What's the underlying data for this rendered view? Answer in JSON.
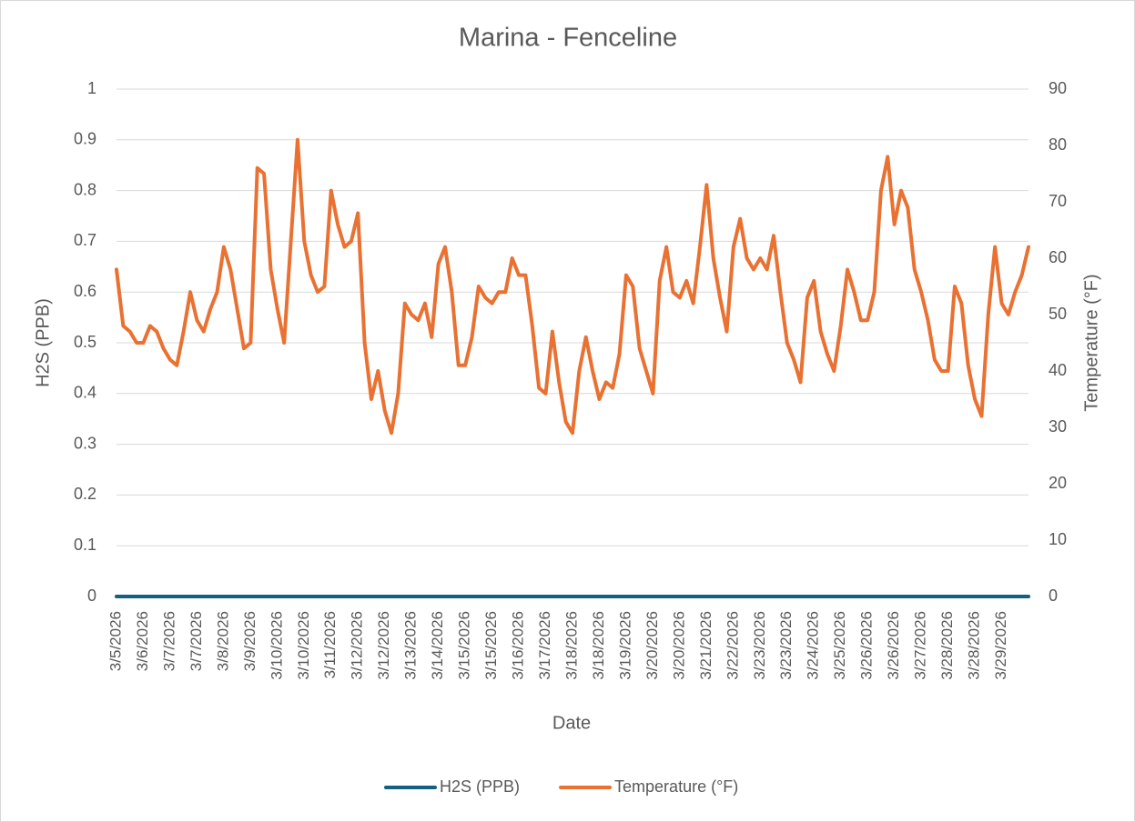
{
  "chart_data": {
    "type": "line",
    "title": "Marina - Fenceline",
    "x_label": "Date",
    "y_label": "H2S (PPB)",
    "y2_label": "Temperature (°F)",
    "categories": [
      "3/5/2026",
      null,
      null,
      null,
      "3/6/2026",
      null,
      null,
      null,
      "3/7/2026",
      null,
      null,
      null,
      "3/7/2026",
      null,
      null,
      null,
      "3/8/2026",
      null,
      null,
      null,
      "3/9/2026",
      null,
      null,
      null,
      "3/10/2026",
      null,
      null,
      null,
      "3/10/2026",
      null,
      null,
      null,
      "3/11/2026",
      null,
      null,
      null,
      "3/12/2026",
      null,
      null,
      null,
      "3/12/2026",
      null,
      null,
      null,
      "3/13/2026",
      null,
      null,
      null,
      "3/14/2026",
      null,
      null,
      null,
      "3/15/2026",
      null,
      null,
      null,
      "3/15/2026",
      null,
      null,
      null,
      "3/16/2026",
      null,
      null,
      null,
      "3/17/2026",
      null,
      null,
      null,
      "3/18/2026",
      null,
      null,
      null,
      "3/18/2026",
      null,
      null,
      null,
      "3/19/2026",
      null,
      null,
      null,
      "3/20/2026",
      null,
      null,
      null,
      "3/20/2026",
      null,
      null,
      null,
      "3/21/2026",
      null,
      null,
      null,
      "3/22/2026",
      null,
      null,
      null,
      "3/23/2026",
      null,
      null,
      null,
      "3/23/2026",
      null,
      null,
      null,
      "3/24/2026",
      null,
      null,
      null,
      "3/25/2026",
      null,
      null,
      null,
      "3/26/2026",
      null,
      null,
      null,
      "3/26/2026",
      null,
      null,
      null,
      "3/27/2026",
      null,
      null,
      null,
      "3/28/2026",
      null,
      null,
      null,
      "3/28/2026",
      null,
      null,
      null,
      "3/29/2026",
      null,
      null,
      null,
      null
    ],
    "series": [
      {
        "name": "H2S (PPB)",
        "color": "#156082",
        "axis": "y",
        "values": [
          0,
          0,
          0,
          0,
          0,
          0,
          0,
          0,
          0,
          0,
          0,
          0,
          0,
          0,
          0,
          0,
          0,
          0,
          0,
          0,
          0,
          0,
          0,
          0,
          0,
          0,
          0,
          0,
          0,
          0,
          0,
          0,
          0,
          0,
          0,
          0,
          0,
          0,
          0,
          0,
          0,
          0,
          0,
          0,
          0,
          0,
          0,
          0,
          0,
          0,
          0,
          0,
          0,
          0,
          0,
          0,
          0,
          0,
          0,
          0,
          0,
          0,
          0,
          0,
          0,
          0,
          0,
          0,
          0,
          0,
          0,
          0,
          0,
          0,
          0,
          0,
          0,
          0,
          0,
          0,
          0,
          0,
          0,
          0,
          0,
          0,
          0,
          0,
          0,
          0,
          0,
          0,
          0,
          0,
          0,
          0,
          0,
          0,
          0,
          0,
          0,
          0,
          0,
          0,
          0,
          0,
          0,
          0,
          0,
          0,
          0,
          0,
          0,
          0,
          0,
          0,
          0,
          0,
          0,
          0,
          0,
          0,
          0,
          0,
          0,
          0,
          0,
          0,
          0,
          0,
          0,
          0,
          0,
          0,
          0,
          0,
          0
        ]
      },
      {
        "name": "Temperature (°F)",
        "color": "#e97132",
        "axis": "y2",
        "values": [
          58,
          48,
          47,
          45,
          45,
          48,
          47,
          44,
          42,
          41,
          47,
          54,
          49,
          47,
          51,
          54,
          62,
          58,
          51,
          44,
          45,
          76,
          75,
          58,
          51,
          45,
          63,
          81,
          63,
          57,
          54,
          55,
          72,
          66,
          62,
          63,
          68,
          45,
          35,
          40,
          33,
          29,
          36,
          52,
          50,
          49,
          52,
          46,
          59,
          62,
          54,
          41,
          41,
          46,
          55,
          53,
          52,
          54,
          54,
          60,
          57,
          57,
          48,
          37,
          36,
          47,
          38,
          31,
          29,
          40,
          46,
          40,
          35,
          38,
          37,
          43,
          57,
          55,
          44,
          40,
          36,
          56,
          62,
          54,
          53,
          56,
          52,
          62,
          73,
          60,
          53,
          47,
          62,
          67,
          60,
          58,
          60,
          58,
          64,
          54,
          45,
          42,
          38,
          53,
          56,
          47,
          43,
          40,
          48,
          58,
          54,
          49,
          49,
          54,
          72,
          78,
          66,
          72,
          69,
          58,
          54,
          49,
          42,
          40,
          40,
          55,
          52,
          41,
          35,
          32,
          50,
          62,
          52,
          50,
          54,
          57,
          62
        ]
      }
    ],
    "ylim": [
      0,
      1
    ],
    "yticks": [
      0,
      0.1,
      0.2,
      0.3,
      0.4,
      0.5,
      0.6,
      0.7,
      0.8,
      0.9,
      1
    ],
    "y2lim": [
      0,
      90
    ],
    "y2ticks": [
      0,
      10,
      20,
      30,
      40,
      50,
      60,
      70,
      80,
      90
    ],
    "grid": true,
    "legend": "bottom"
  }
}
